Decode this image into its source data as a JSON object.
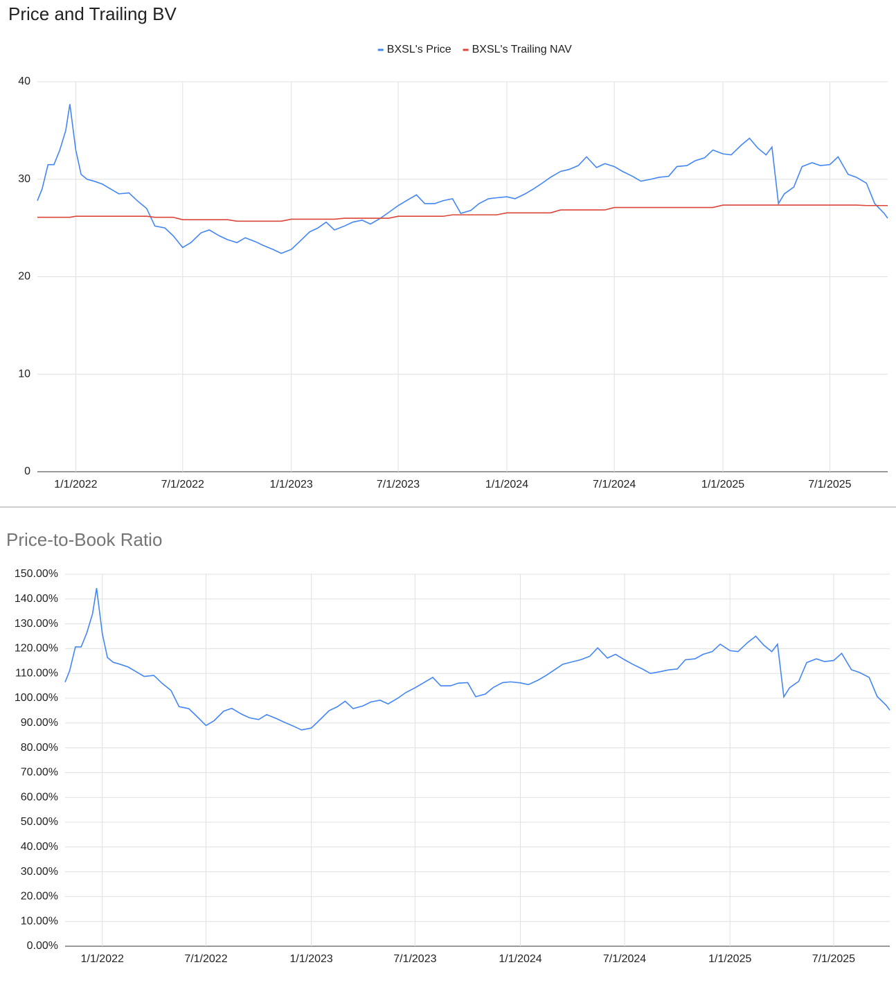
{
  "chart_data": [
    {
      "type": "line",
      "title": "Price and Trailing BV",
      "legend": "top",
      "x": [
        "2021-10-28",
        "2021-11-05",
        "2021-11-15",
        "2021-11-25",
        "2021-12-05",
        "2021-12-15",
        "2021-12-22",
        "2022-01-01",
        "2022-01-10",
        "2022-01-20",
        "2022-02-01",
        "2022-02-15",
        "2022-03-01",
        "2022-03-15",
        "2022-04-01",
        "2022-04-15",
        "2022-05-01",
        "2022-05-15",
        "2022-06-01",
        "2022-06-15",
        "2022-07-01",
        "2022-07-15",
        "2022-08-01",
        "2022-08-15",
        "2022-09-01",
        "2022-09-15",
        "2022-10-01",
        "2022-10-15",
        "2022-11-01",
        "2022-11-15",
        "2022-12-01",
        "2022-12-15",
        "2023-01-01",
        "2023-01-15",
        "2023-02-01",
        "2023-02-15",
        "2023-03-01",
        "2023-03-15",
        "2023-04-01",
        "2023-04-15",
        "2023-05-01",
        "2023-05-15",
        "2023-06-01",
        "2023-06-15",
        "2023-07-01",
        "2023-07-15",
        "2023-08-01",
        "2023-08-15",
        "2023-09-01",
        "2023-09-15",
        "2023-10-01",
        "2023-10-15",
        "2023-11-01",
        "2023-11-15",
        "2023-12-01",
        "2023-12-15",
        "2024-01-01",
        "2024-01-15",
        "2024-02-01",
        "2024-02-15",
        "2024-03-01",
        "2024-03-15",
        "2024-04-01",
        "2024-04-15",
        "2024-05-01",
        "2024-05-15",
        "2024-06-01",
        "2024-06-15",
        "2024-07-01",
        "2024-07-15",
        "2024-08-01",
        "2024-08-15",
        "2024-09-01",
        "2024-09-15",
        "2024-10-01",
        "2024-10-15",
        "2024-11-01",
        "2024-11-15",
        "2024-12-01",
        "2024-12-15",
        "2025-01-01",
        "2025-01-15",
        "2025-02-01",
        "2025-02-15",
        "2025-03-01",
        "2025-03-15",
        "2025-03-25",
        "2025-04-05",
        "2025-04-15",
        "2025-05-01",
        "2025-05-15",
        "2025-06-01",
        "2025-06-15",
        "2025-07-01",
        "2025-07-15",
        "2025-08-01",
        "2025-08-15",
        "2025-09-01",
        "2025-09-15",
        "2025-10-01",
        "2025-10-07"
      ],
      "series": [
        {
          "name": "BXSL's Price",
          "color": "#4285f4",
          "values": [
            27.8,
            29,
            31.5,
            31.5,
            33,
            35,
            37.7,
            33,
            30.5,
            30,
            29.8,
            29.5,
            29.0,
            28.5,
            28.6,
            27.8,
            27.0,
            25.2,
            25.0,
            24.2,
            23.0,
            23.5,
            24.5,
            24.8,
            24.2,
            23.8,
            23.5,
            24.0,
            23.6,
            23.2,
            22.8,
            22.4,
            22.8,
            23.6,
            24.6,
            25.0,
            25.6,
            24.8,
            25.2,
            25.6,
            25.8,
            25.4,
            26.0,
            26.6,
            27.3,
            27.8,
            28.4,
            27.5,
            27.5,
            27.8,
            28.0,
            26.5,
            26.8,
            27.5,
            28.0,
            28.1,
            28.2,
            28.0,
            28.5,
            29.0,
            29.6,
            30.2,
            30.8,
            31.0,
            31.4,
            32.3,
            31.2,
            31.6,
            31.3,
            30.8,
            30.3,
            29.8,
            30.0,
            30.2,
            30.3,
            31.3,
            31.4,
            31.9,
            32.2,
            33.0,
            32.6,
            32.5,
            33.5,
            34.2,
            33.2,
            32.5,
            33.3,
            27.5,
            28.5,
            29.2,
            31.3,
            31.7,
            31.4,
            31.5,
            32.3,
            30.5,
            30.2,
            29.6,
            27.5,
            26.5,
            26.0
          ]
        },
        {
          "name": "BXSL's Trailing NAV",
          "color": "#db4437",
          "values": [
            26.1,
            26.1,
            26.1,
            26.1,
            26.1,
            26.1,
            26.1,
            26.2,
            26.2,
            26.2,
            26.2,
            26.2,
            26.2,
            26.2,
            26.2,
            26.2,
            26.2,
            26.1,
            26.1,
            26.1,
            25.85,
            25.85,
            25.85,
            25.85,
            25.85,
            25.85,
            25.7,
            25.7,
            25.7,
            25.7,
            25.7,
            25.7,
            25.9,
            25.9,
            25.9,
            25.9,
            25.9,
            25.9,
            26.0,
            26.0,
            26.0,
            26.0,
            26.0,
            26.0,
            26.2,
            26.2,
            26.2,
            26.2,
            26.2,
            26.2,
            26.35,
            26.35,
            26.35,
            26.35,
            26.35,
            26.35,
            26.55,
            26.55,
            26.55,
            26.55,
            26.55,
            26.55,
            26.85,
            26.85,
            26.85,
            26.85,
            26.85,
            26.85,
            27.1,
            27.1,
            27.1,
            27.1,
            27.1,
            27.1,
            27.1,
            27.1,
            27.1,
            27.1,
            27.1,
            27.1,
            27.35,
            27.35,
            27.35,
            27.35,
            27.35,
            27.35,
            27.35,
            27.35,
            27.35,
            27.35,
            27.35,
            27.35,
            27.35,
            27.35,
            27.35,
            27.35,
            27.35,
            27.3,
            27.3,
            27.3,
            27.3
          ]
        }
      ],
      "xlim": [
        "2021-10-28",
        "2025-10-07"
      ],
      "xticks": [
        {
          "value": "2022-01-01",
          "label": "1/1/2022"
        },
        {
          "value": "2022-07-01",
          "label": "7/1/2022"
        },
        {
          "value": "2023-01-01",
          "label": "1/1/2023"
        },
        {
          "value": "2023-07-01",
          "label": "7/1/2023"
        },
        {
          "value": "2024-01-01",
          "label": "1/1/2024"
        },
        {
          "value": "2024-07-01",
          "label": "7/1/2024"
        },
        {
          "value": "2025-01-01",
          "label": "1/1/2025"
        },
        {
          "value": "2025-07-01",
          "label": "7/1/2025"
        }
      ],
      "ylim": [
        0,
        40
      ],
      "yticks": [
        0,
        10,
        20,
        30,
        40
      ],
      "grid": true
    },
    {
      "type": "line",
      "title": "Price-to-Book Ratio",
      "x": [
        "2021-10-28",
        "2021-11-05",
        "2021-11-15",
        "2021-11-25",
        "2021-12-05",
        "2021-12-15",
        "2021-12-22",
        "2022-01-01",
        "2022-01-10",
        "2022-01-20",
        "2022-02-01",
        "2022-02-15",
        "2022-03-01",
        "2022-03-15",
        "2022-04-01",
        "2022-04-15",
        "2022-05-01",
        "2022-05-15",
        "2022-06-01",
        "2022-06-15",
        "2022-07-01",
        "2022-07-15",
        "2022-08-01",
        "2022-08-15",
        "2022-09-01",
        "2022-09-15",
        "2022-10-01",
        "2022-10-15",
        "2022-11-01",
        "2022-11-15",
        "2022-12-01",
        "2022-12-15",
        "2023-01-01",
        "2023-01-15",
        "2023-02-01",
        "2023-02-15",
        "2023-03-01",
        "2023-03-15",
        "2023-04-01",
        "2023-04-15",
        "2023-05-01",
        "2023-05-15",
        "2023-06-01",
        "2023-06-15",
        "2023-07-01",
        "2023-07-15",
        "2023-08-01",
        "2023-08-15",
        "2023-09-01",
        "2023-09-15",
        "2023-10-01",
        "2023-10-15",
        "2023-11-01",
        "2023-11-15",
        "2023-12-01",
        "2023-12-15",
        "2024-01-01",
        "2024-01-15",
        "2024-02-01",
        "2024-02-15",
        "2024-03-01",
        "2024-03-15",
        "2024-04-01",
        "2024-04-15",
        "2024-05-01",
        "2024-05-15",
        "2024-06-01",
        "2024-06-15",
        "2024-07-01",
        "2024-07-15",
        "2024-08-01",
        "2024-08-15",
        "2024-09-01",
        "2024-09-15",
        "2024-10-01",
        "2024-10-15",
        "2024-11-01",
        "2024-11-15",
        "2024-12-01",
        "2024-12-15",
        "2025-01-01",
        "2025-01-15",
        "2025-02-01",
        "2025-02-15",
        "2025-03-01",
        "2025-03-15",
        "2025-03-25",
        "2025-04-05",
        "2025-04-15",
        "2025-05-01",
        "2025-05-15",
        "2025-06-01",
        "2025-06-15",
        "2025-07-01",
        "2025-07-15",
        "2025-08-01",
        "2025-08-15",
        "2025-09-01",
        "2025-09-15",
        "2025-10-01",
        "2025-10-07"
      ],
      "series": [
        {
          "color": "#4285f4",
          "values": [
            106.5,
            111.1,
            120.7,
            120.7,
            126.4,
            134.1,
            144.4,
            126.0,
            116.4,
            114.5,
            113.7,
            112.6,
            110.7,
            108.8,
            109.2,
            106.1,
            103.1,
            96.6,
            95.8,
            92.7,
            89.0,
            90.9,
            94.8,
            95.9,
            93.6,
            92.1,
            91.4,
            93.4,
            91.8,
            90.3,
            88.7,
            87.2,
            88.0,
            91.1,
            95.0,
            96.5,
            98.8,
            95.8,
            96.9,
            98.5,
            99.2,
            97.7,
            100.0,
            102.3,
            104.2,
            106.1,
            108.4,
            105.0,
            105.0,
            106.1,
            106.3,
            100.6,
            101.7,
            104.4,
            106.3,
            106.6,
            106.2,
            105.5,
            107.3,
            109.2,
            111.5,
            113.7,
            114.7,
            115.5,
            116.9,
            120.3,
            116.2,
            117.7,
            115.5,
            113.7,
            111.8,
            110.0,
            110.7,
            111.4,
            111.8,
            115.5,
            115.9,
            117.7,
            118.8,
            121.8,
            119.2,
            118.8,
            122.5,
            125.0,
            121.4,
            118.8,
            121.8,
            100.5,
            104.2,
            106.8,
            114.4,
            115.9,
            114.8,
            115.2,
            118.1,
            111.5,
            110.4,
            108.4,
            100.7,
            97.1,
            95.2
          ]
        }
      ],
      "xlim": [
        "2021-10-28",
        "2025-10-07"
      ],
      "xticks": [
        {
          "value": "2022-01-01",
          "label": "1/1/2022"
        },
        {
          "value": "2022-07-01",
          "label": "7/1/2022"
        },
        {
          "value": "2023-01-01",
          "label": "1/1/2023"
        },
        {
          "value": "2023-07-01",
          "label": "7/1/2023"
        },
        {
          "value": "2024-01-01",
          "label": "1/1/2024"
        },
        {
          "value": "2024-07-01",
          "label": "7/1/2024"
        },
        {
          "value": "2025-01-01",
          "label": "1/1/2025"
        },
        {
          "value": "2025-07-01",
          "label": "7/1/2025"
        }
      ],
      "ylim": [
        0,
        150
      ],
      "yticks": [
        {
          "value": 0,
          "label": "0.00%"
        },
        {
          "value": 10,
          "label": "10.00%"
        },
        {
          "value": 20,
          "label": "20.00%"
        },
        {
          "value": 30,
          "label": "30.00%"
        },
        {
          "value": 40,
          "label": "40.00%"
        },
        {
          "value": 50,
          "label": "50.00%"
        },
        {
          "value": 60,
          "label": "60.00%"
        },
        {
          "value": 70,
          "label": "70.00%"
        },
        {
          "value": 80,
          "label": "80.00%"
        },
        {
          "value": 90,
          "label": "90.00%"
        },
        {
          "value": 100,
          "label": "100.00%"
        },
        {
          "value": 110,
          "label": "110.00%"
        },
        {
          "value": 120,
          "label": "120.00%"
        },
        {
          "value": 130,
          "label": "130.00%"
        },
        {
          "value": 140,
          "label": "140.00%"
        },
        {
          "value": 150,
          "label": "150.00%"
        }
      ],
      "grid": true
    }
  ]
}
